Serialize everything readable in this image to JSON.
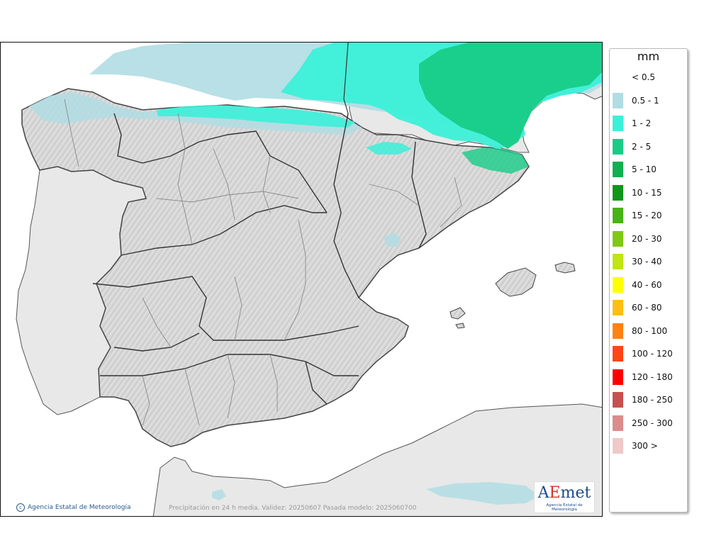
{
  "legend": {
    "unit": "mm",
    "items": [
      {
        "label": "< 0.5",
        "color": "#ffffff"
      },
      {
        "label": "0.5 - 1",
        "color": "#b0dde3"
      },
      {
        "label": "1 - 2",
        "color": "#3cf0d8"
      },
      {
        "label": "2 - 5",
        "color": "#18cc88"
      },
      {
        "label": "5 - 10",
        "color": "#10b050"
      },
      {
        "label": "10 - 15",
        "color": "#10961a"
      },
      {
        "label": "15 - 20",
        "color": "#46b414"
      },
      {
        "label": "20 - 30",
        "color": "#80c814"
      },
      {
        "label": "30 - 40",
        "color": "#c0e414"
      },
      {
        "label": "40 - 60",
        "color": "#ffff00"
      },
      {
        "label": "60 - 80",
        "color": "#ffbe14"
      },
      {
        "label": "80 - 100",
        "color": "#ff8214"
      },
      {
        "label": "100 - 120",
        "color": "#ff4614"
      },
      {
        "label": "120 - 180",
        "color": "#ff0000"
      },
      {
        "label": "180 - 250",
        "color": "#c85050"
      },
      {
        "label": "250 - 300",
        "color": "#dc8c8c"
      },
      {
        "label": "300 >",
        "color": "#f0c8c8"
      }
    ]
  },
  "map": {
    "credit": "Agencia Estatal de Meteorología",
    "caption": "Precipitación en 24 h media. Validez: 20250607 Pasada modelo: 2025060700",
    "logo_word": "AEmet",
    "logo_subtitle": "Agencia Estatal de Meteorología"
  }
}
